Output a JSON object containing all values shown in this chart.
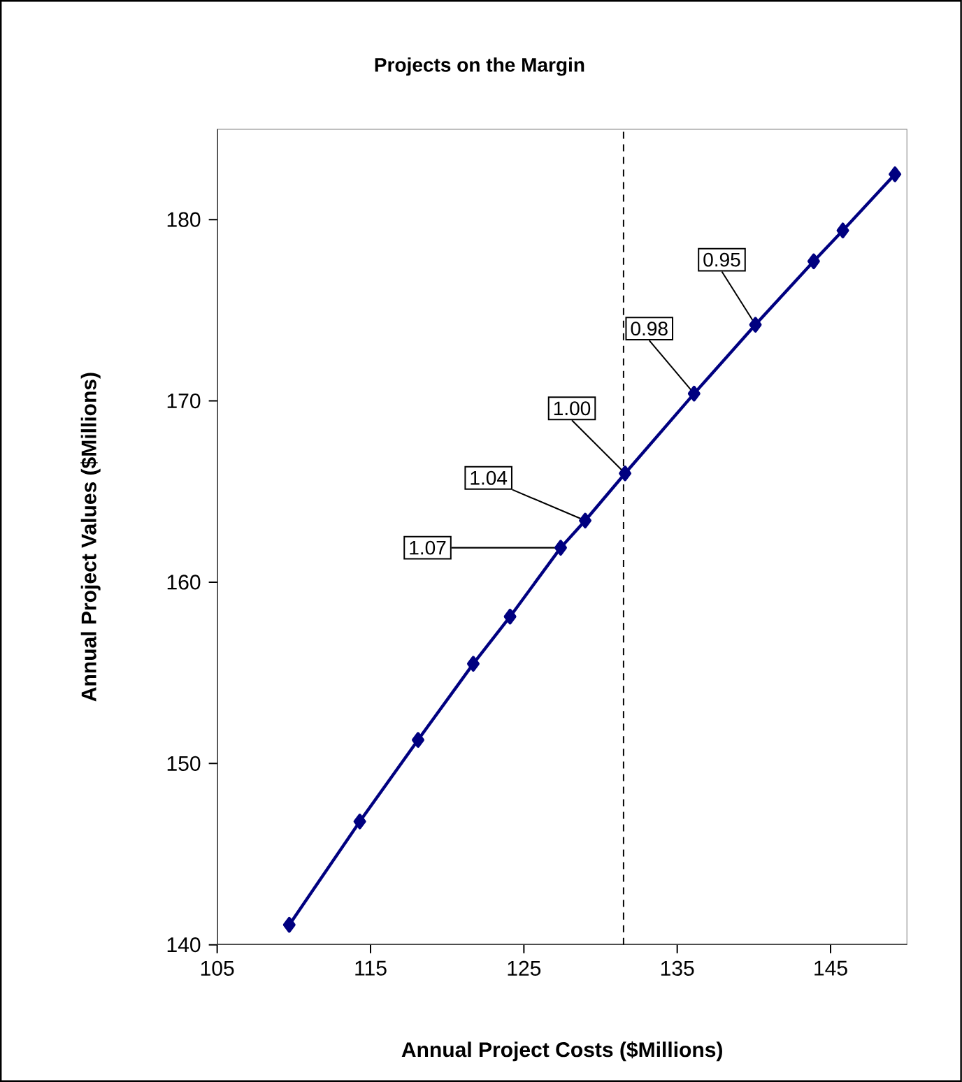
{
  "chart_data": {
    "type": "line",
    "title": "Projects on the Margin",
    "xlabel": "Annual Project Costs ($Millions)",
    "ylabel": "Annual Project Values ($Millions)",
    "x": [
      109.7,
      114.3,
      118.1,
      121.7,
      124.1,
      127.4,
      129.0,
      131.6,
      136.1,
      140.1,
      143.9,
      145.8,
      149.2
    ],
    "series": [
      {
        "color": "#000080",
        "values": [
          141.1,
          146.8,
          151.3,
          155.5,
          158.1,
          161.9,
          163.4,
          166.0,
          170.4,
          174.2,
          177.7,
          179.4,
          182.5
        ]
      }
    ],
    "marker": "diamond",
    "line_style": "solid",
    "xlim": [
      105,
      150
    ],
    "xticks": [
      105,
      115,
      125,
      135,
      145
    ],
    "ylim": [
      140,
      185
    ],
    "yticks": [
      140,
      150,
      160,
      170,
      180
    ],
    "grid": false,
    "ref_lines": [
      {
        "axis": "x",
        "value": 131.5,
        "color": "#000000",
        "line_style": "dashed"
      }
    ],
    "annotations": [
      {
        "text": "1.07",
        "x": 127.4,
        "y": 161.9
      },
      {
        "text": "1.04",
        "x": 129.0,
        "y": 163.4
      },
      {
        "text": "1.00",
        "x": 131.6,
        "y": 166.0
      },
      {
        "text": "0.98",
        "x": 136.1,
        "y": 170.4
      },
      {
        "text": "0.95",
        "x": 140.1,
        "y": 174.2
      }
    ]
  }
}
